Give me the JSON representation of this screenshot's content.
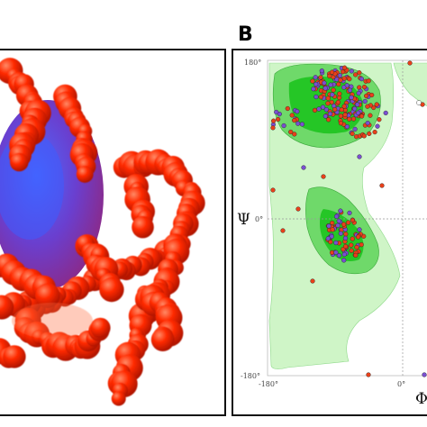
{
  "panel_a": {
    "label": ""
  },
  "panel_b": {
    "label": "B",
    "y_axis_symbol": "Ψ",
    "x_axis_symbol": "Φ",
    "y_ticks": {
      "top": "180°",
      "middle": "0°",
      "bottom": "-180°"
    },
    "x_ticks": {
      "left": "-180°",
      "middle": "0°"
    }
  },
  "colors": {
    "molecule_red": "#ff2a00",
    "molecule_core": "#5a3ad0",
    "region_light": "#cff5c7",
    "region_mid": "#6fd96a",
    "region_core": "#19c21a",
    "dot_red": "#e8401a",
    "dot_purple": "#7a4fd0",
    "dot_white": "#ffffff"
  }
}
